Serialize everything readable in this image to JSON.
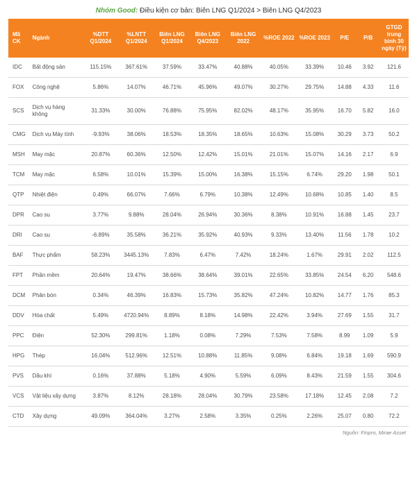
{
  "title": {
    "group_label": "Nhóm Good:",
    "condition": "Điều kiện cơ bản: Biên LNG Q1/2024 > Biên LNG Q4/2023",
    "group_color": "#5aa641",
    "text_color": "#333333"
  },
  "source_text": "Nguồn: Finpro, Mirae Asset",
  "header": {
    "bg_color": "#f58220",
    "text_color": "#ffffff",
    "columns": [
      "Mã CK",
      "Ngành",
      "%DTT Q1/2024",
      "%LNTT Q1/2024",
      "Biên LNG Q1/2024",
      "Biên LNG Q4/2023",
      "Biên LNG 2022",
      "%ROE 2022",
      "%ROE 2023",
      "P/E",
      "P/B",
      "GTGD trung bình 30 ngày (Tỷ)"
    ]
  },
  "body": {
    "text_color": "#4d4d4d",
    "border_color": "#d9d9d9",
    "rows": [
      [
        "IDC",
        "Bất động sản",
        "115.15%",
        "367.61%",
        "37.59%",
        "33.47%",
        "40.88%",
        "40.05%",
        "33.39%",
        "10.46",
        "3.92",
        "121.6"
      ],
      [
        "FOX",
        "Công nghệ",
        "5.86%",
        "14.07%",
        "46.71%",
        "45.96%",
        "49.07%",
        "30.27%",
        "29.75%",
        "14.88",
        "4.33",
        "11.6"
      ],
      [
        "SCS",
        "Dịch vụ hàng không",
        "31.33%",
        "30.00%",
        "76.88%",
        "75.95%",
        "82.02%",
        "48.17%",
        "35.95%",
        "16.70",
        "5.82",
        "16.0"
      ],
      [
        "CMG",
        "Dịch vụ Máy tính",
        "-9.93%",
        "38.06%",
        "18.53%",
        "18.35%",
        "18.65%",
        "10.63%",
        "15.08%",
        "30.29",
        "3.73",
        "50.2"
      ],
      [
        "MSH",
        "May mặc",
        "20.87%",
        "60.36%",
        "12.50%",
        "12.42%",
        "15.01%",
        "21.01%",
        "15.07%",
        "14.16",
        "2.17",
        "6.9"
      ],
      [
        "TCM",
        "May mặc",
        "6.58%",
        "10.01%",
        "15.39%",
        "15.00%",
        "16.38%",
        "15.15%",
        "6.74%",
        "29.20",
        "1.98",
        "50.1"
      ],
      [
        "QTP",
        "Nhiệt điện",
        "0.49%",
        "66.07%",
        "7.66%",
        "6.79%",
        "10.38%",
        "12.49%",
        "10.68%",
        "10.85",
        "1.40",
        "8.5"
      ],
      [
        "DPR",
        "Cao su",
        "3.77%",
        "9.88%",
        "28.04%",
        "26.94%",
        "30.36%",
        "8.38%",
        "10.91%",
        "16.88",
        "1.45",
        "23.7"
      ],
      [
        "DRI",
        "Cao su",
        "-6.89%",
        "35.58%",
        "36.21%",
        "35.92%",
        "40.93%",
        "9.33%",
        "13.40%",
        "11.56",
        "1.78",
        "10.2"
      ],
      [
        "BAF",
        "Thực phẩm",
        "58.23%",
        "3445.13%",
        "7.83%",
        "6.47%",
        "7.42%",
        "18.24%",
        "1.67%",
        "29.91",
        "2.02",
        "112.5"
      ],
      [
        "FPT",
        "Phần mềm",
        "20.64%",
        "19.47%",
        "38.66%",
        "38.64%",
        "39.01%",
        "22.65%",
        "33.85%",
        "24.54",
        "6.20",
        "548.6"
      ],
      [
        "DCM",
        "Phân bón",
        "0.34%",
        "46.39%",
        "16.83%",
        "15.73%",
        "35.82%",
        "47.24%",
        "10.82%",
        "14.77",
        "1.76",
        "85.3"
      ],
      [
        "DDV",
        "Hóa chất",
        "5.49%",
        "4720.94%",
        "8.89%",
        "8.18%",
        "14.98%",
        "22.42%",
        "3.94%",
        "27.69",
        "1.55",
        "31.7"
      ],
      [
        "PPC",
        "Điện",
        "52.30%",
        "299.81%",
        "1.18%",
        "0.08%",
        "7.29%",
        "7.53%",
        "7.58%",
        "8.99",
        "1.09",
        "5.9"
      ],
      [
        "HPG",
        "Thép",
        "16.04%",
        "512.96%",
        "12.51%",
        "10.88%",
        "11.85%",
        "9.08%",
        "6.84%",
        "19.18",
        "1.69",
        "590.9"
      ],
      [
        "PVS",
        "Dầu khí",
        "0.16%",
        "37.88%",
        "5.18%",
        "4.90%",
        "5.59%",
        "6.09%",
        "8.43%",
        "21.59",
        "1.55",
        "304.6"
      ],
      [
        "VCS",
        "Vật liệu xây dựng",
        "3.87%",
        "8.12%",
        "28.18%",
        "28.04%",
        "30.79%",
        "23.58%",
        "17.18%",
        "12.45",
        "2.08",
        "7.2"
      ],
      [
        "CTD",
        "Xây dựng",
        "49.09%",
        "364.04%",
        "3.27%",
        "2.58%",
        "3.35%",
        "0.25%",
        "2.26%",
        "25.07",
        "0.80",
        "72.2"
      ]
    ]
  }
}
